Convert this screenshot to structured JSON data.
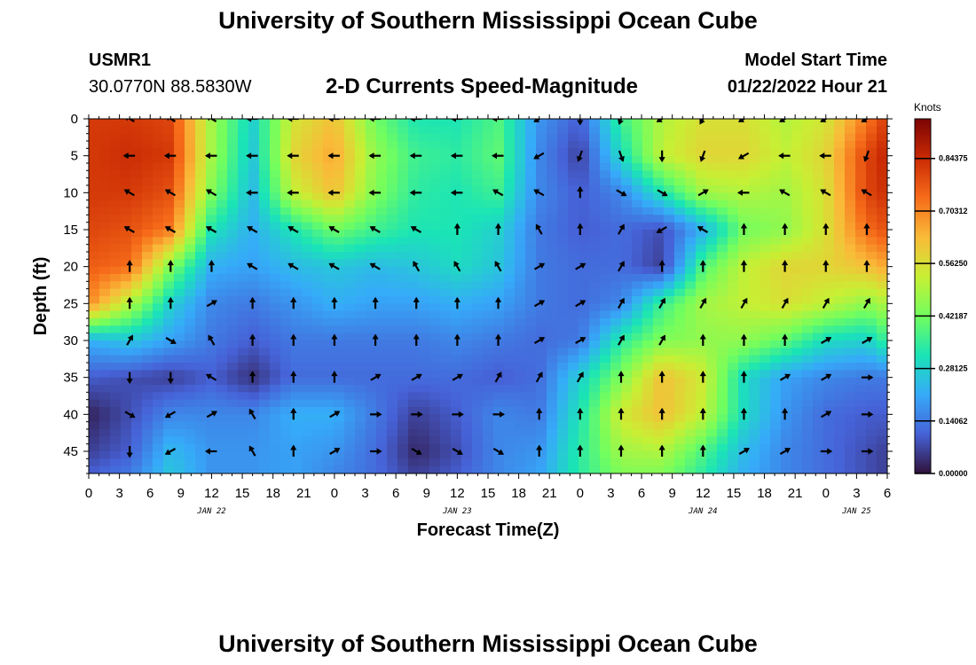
{
  "header": {
    "title": "University of Southern Mississippi Ocean Cube",
    "station_id": "USMR1",
    "station_coords": "30.0770N  88.5830W",
    "subtitle": "2-D Currents Speed-Magnitude",
    "model_start_label": "Model Start Time",
    "model_start_value": "01/22/2022 Hour 21"
  },
  "footer": {
    "title": "University of Southern Mississippi Ocean Cube"
  },
  "chart_data": {
    "type": "heatmap",
    "xlabel": "Forecast Time(Z)",
    "ylabel": "Depth (ft)",
    "x_ticks": [
      "0",
      "3",
      "6",
      "9",
      "12",
      "15",
      "18",
      "21",
      "0",
      "3",
      "6",
      "9",
      "12",
      "15",
      "18",
      "21",
      "0",
      "3",
      "6",
      "9",
      "12",
      "15",
      "18",
      "21",
      "0",
      "3",
      "6"
    ],
    "x_range_hours": [
      0,
      78
    ],
    "date_labels": [
      {
        "text": "JAN 22",
        "hour": 12
      },
      {
        "text": "JAN 23",
        "hour": 36
      },
      {
        "text": "JAN 24",
        "hour": 60
      },
      {
        "text": "JAN 25",
        "hour": 75
      }
    ],
    "y_ticks": [
      0,
      5,
      10,
      15,
      20,
      25,
      30,
      35,
      40,
      45
    ],
    "ylim": [
      0,
      48
    ],
    "y_inverted": true,
    "colorbar": {
      "title": "Knots",
      "ticks": [
        "0.84375",
        "0.70312",
        "0.56250",
        "0.42187",
        "0.28125",
        "0.14062",
        "0.00000"
      ],
      "range": [
        0,
        0.95
      ],
      "colormap": [
        "#30123b",
        "#4662d7",
        "#36aaf9",
        "#1ae4b6",
        "#72fe5e",
        "#c8ef34",
        "#faba39",
        "#f66b19",
        "#ca2a04",
        "#7a0403"
      ]
    },
    "speed_grid_columns_hours": [
      0,
      4,
      8,
      12,
      16,
      20,
      24,
      28,
      32,
      36,
      40,
      44,
      48,
      52,
      56,
      60,
      64,
      68,
      72,
      76,
      78
    ],
    "speed_grid_rows_depth_ft": [
      0,
      5,
      10,
      15,
      20,
      25,
      30,
      35,
      40,
      45,
      48
    ],
    "speed_knots": [
      [
        0.82,
        0.82,
        0.8,
        0.48,
        0.28,
        0.55,
        0.62,
        0.42,
        0.32,
        0.32,
        0.38,
        0.18,
        0.1,
        0.36,
        0.5,
        0.56,
        0.56,
        0.5,
        0.55,
        0.72,
        0.82
      ],
      [
        0.82,
        0.84,
        0.82,
        0.48,
        0.26,
        0.58,
        0.66,
        0.46,
        0.36,
        0.34,
        0.4,
        0.16,
        0.06,
        0.3,
        0.52,
        0.58,
        0.58,
        0.52,
        0.58,
        0.8,
        0.86
      ],
      [
        0.82,
        0.82,
        0.78,
        0.44,
        0.24,
        0.52,
        0.62,
        0.44,
        0.34,
        0.32,
        0.36,
        0.16,
        0.1,
        0.16,
        0.32,
        0.48,
        0.5,
        0.48,
        0.56,
        0.8,
        0.84
      ],
      [
        0.8,
        0.78,
        0.72,
        0.32,
        0.22,
        0.32,
        0.42,
        0.36,
        0.32,
        0.32,
        0.28,
        0.14,
        0.1,
        0.12,
        0.08,
        0.22,
        0.42,
        0.46,
        0.56,
        0.74,
        0.78
      ],
      [
        0.76,
        0.74,
        0.44,
        0.22,
        0.2,
        0.24,
        0.26,
        0.24,
        0.26,
        0.3,
        0.26,
        0.14,
        0.12,
        0.12,
        0.06,
        0.38,
        0.52,
        0.58,
        0.58,
        0.62,
        0.66
      ],
      [
        0.7,
        0.5,
        0.28,
        0.16,
        0.14,
        0.18,
        0.22,
        0.2,
        0.2,
        0.22,
        0.2,
        0.14,
        0.12,
        0.16,
        0.36,
        0.48,
        0.52,
        0.56,
        0.52,
        0.46,
        0.5
      ],
      [
        0.22,
        0.26,
        0.2,
        0.14,
        0.1,
        0.14,
        0.14,
        0.14,
        0.14,
        0.16,
        0.14,
        0.12,
        0.14,
        0.34,
        0.44,
        0.46,
        0.46,
        0.4,
        0.3,
        0.28,
        0.36
      ],
      [
        0.1,
        0.08,
        0.06,
        0.1,
        0.04,
        0.12,
        0.12,
        0.12,
        0.12,
        0.12,
        0.1,
        0.12,
        0.28,
        0.44,
        0.62,
        0.54,
        0.3,
        0.2,
        0.16,
        0.14,
        0.14
      ],
      [
        0.02,
        0.08,
        0.16,
        0.16,
        0.16,
        0.22,
        0.22,
        0.14,
        0.06,
        0.1,
        0.16,
        0.14,
        0.32,
        0.54,
        0.62,
        0.52,
        0.3,
        0.18,
        0.12,
        0.1,
        0.1
      ],
      [
        0.06,
        0.1,
        0.24,
        0.18,
        0.18,
        0.2,
        0.18,
        0.12,
        0.03,
        0.08,
        0.16,
        0.18,
        0.34,
        0.48,
        0.5,
        0.38,
        0.24,
        0.16,
        0.12,
        0.08,
        0.06
      ],
      [
        0.1,
        0.14,
        0.26,
        0.18,
        0.18,
        0.2,
        0.16,
        0.12,
        0.06,
        0.1,
        0.16,
        0.2,
        0.34,
        0.44,
        0.44,
        0.34,
        0.22,
        0.16,
        0.12,
        0.08,
        0.06
      ]
    ],
    "vector_columns_hours": [
      4,
      8,
      12,
      16,
      20,
      24,
      28,
      32,
      36,
      40,
      44,
      48,
      52,
      56,
      60,
      64,
      68,
      72,
      76
    ],
    "vector_rows_depth_ft": [
      0,
      5,
      10,
      15,
      20,
      25,
      30,
      35,
      40,
      45
    ],
    "vector_directions_deg": [
      [
        300,
        300,
        300,
        270,
        270,
        270,
        270,
        270,
        270,
        270,
        240,
        180,
        200,
        240,
        210,
        240,
        240,
        240,
        240
      ],
      [
        270,
        270,
        270,
        270,
        270,
        270,
        270,
        270,
        270,
        270,
        240,
        200,
        160,
        180,
        200,
        240,
        270,
        270,
        200
      ],
      [
        300,
        300,
        300,
        270,
        270,
        270,
        270,
        270,
        270,
        300,
        300,
        0,
        120,
        120,
        60,
        270,
        300,
        300,
        300
      ],
      [
        300,
        300,
        300,
        300,
        300,
        300,
        300,
        300,
        0,
        0,
        330,
        0,
        30,
        240,
        300,
        0,
        0,
        0,
        0
      ],
      [
        0,
        0,
        0,
        300,
        300,
        300,
        300,
        330,
        330,
        330,
        60,
        60,
        30,
        0,
        0,
        0,
        0,
        0,
        0
      ],
      [
        0,
        0,
        60,
        0,
        0,
        0,
        0,
        0,
        0,
        0,
        60,
        60,
        30,
        30,
        30,
        30,
        30,
        30,
        30
      ],
      [
        30,
        120,
        330,
        0,
        0,
        0,
        0,
        0,
        0,
        0,
        60,
        60,
        30,
        30,
        0,
        0,
        0,
        60,
        60
      ],
      [
        180,
        180,
        300,
        0,
        0,
        0,
        60,
        60,
        60,
        30,
        30,
        30,
        0,
        0,
        0,
        0,
        60,
        60,
        90
      ],
      [
        120,
        240,
        60,
        330,
        0,
        60,
        90,
        90,
        90,
        90,
        0,
        0,
        0,
        0,
        0,
        0,
        0,
        60,
        90
      ],
      [
        180,
        240,
        270,
        330,
        0,
        60,
        90,
        120,
        120,
        120,
        0,
        0,
        0,
        0,
        0,
        60,
        60,
        90,
        90
      ]
    ]
  }
}
